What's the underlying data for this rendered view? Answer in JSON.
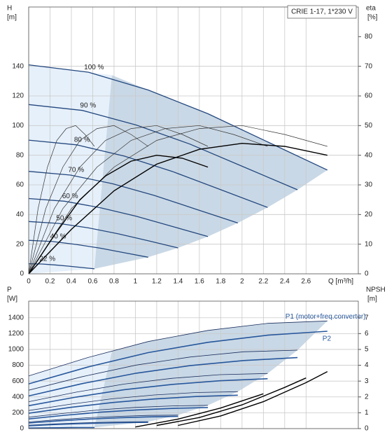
{
  "chart_data": [
    {
      "type": "line",
      "title": "CRIE 1-17, 1*230 V",
      "x_label": "Q [m³/h]",
      "y_label": "H",
      "y_unit": "[m]",
      "y2_label": "eta",
      "y2_unit": "[%]",
      "xlim": [
        0,
        3.09
      ],
      "xticks": [
        0,
        0.2,
        0.4,
        0.6,
        0.8,
        1,
        1.2,
        1.4,
        1.6,
        1.8,
        2,
        2.2,
        2.4,
        2.6
      ],
      "ylim": [
        0,
        180
      ],
      "yticks": [
        0,
        20,
        40,
        60,
        80,
        100,
        120,
        140
      ],
      "y2lim": [
        0,
        90
      ],
      "y2ticks": [
        0,
        10,
        20,
        30,
        40,
        50,
        60,
        70,
        80
      ],
      "grid": true,
      "areas": [
        {
          "color": "#e6f0fa",
          "x": [
            0,
            0,
            0.56,
            0.78,
            0.62
          ],
          "values": [
            0,
            141,
            136,
            134,
            3.4
          ]
        },
        {
          "color": "#c9d8e6",
          "x": [
            0.78,
            1.12,
            1.68,
            2.24,
            2.8,
            2.52,
            2.24,
            1.96,
            1.68,
            1.4,
            1.12,
            0.616
          ],
          "values": [
            134,
            124,
            108,
            89,
            70,
            56.7,
            44.8,
            34.3,
            25.2,
            17.5,
            11.2,
            3.4
          ]
        }
      ],
      "series": [
        {
          "name": "100 %",
          "color": "#24487f",
          "x": [
            0,
            0.56,
            1.12,
            1.68,
            2.24,
            2.8
          ],
          "values": [
            141,
            136,
            124,
            108,
            89,
            70
          ]
        },
        {
          "name": "90 %",
          "color": "#24487f",
          "x": [
            0,
            0.504,
            1.008,
            1.512,
            2.016,
            2.52
          ],
          "values": [
            114.2,
            110.2,
            100.4,
            87.5,
            72.1,
            56.7
          ]
        },
        {
          "name": "80 %",
          "color": "#24487f",
          "x": [
            0,
            0.448,
            0.896,
            1.344,
            1.792,
            2.24
          ],
          "values": [
            90.2,
            87,
            79.4,
            69.1,
            57,
            44.8
          ]
        },
        {
          "name": "70 %",
          "color": "#24487f",
          "x": [
            0,
            0.392,
            0.784,
            1.176,
            1.568,
            1.96
          ],
          "values": [
            69.1,
            66.6,
            60.8,
            52.9,
            43.6,
            34.3
          ]
        },
        {
          "name": "60 %",
          "color": "#24487f",
          "x": [
            0,
            0.336,
            0.672,
            1.008,
            1.344,
            1.68
          ],
          "values": [
            50.8,
            49,
            44.6,
            38.9,
            32,
            25.2
          ]
        },
        {
          "name": "50 %",
          "color": "#24487f",
          "x": [
            0,
            0.28,
            0.56,
            0.84,
            1.12,
            1.4
          ],
          "values": [
            35.3,
            34,
            31,
            27,
            22.3,
            17.5
          ]
        },
        {
          "name": "40 %",
          "color": "#24487f",
          "x": [
            0,
            0.224,
            0.448,
            0.672,
            0.896,
            1.12
          ],
          "values": [
            22.6,
            21.8,
            19.8,
            17.3,
            14.2,
            11.2
          ]
        },
        {
          "name": "22 %",
          "color": "#24487f",
          "x": [
            0,
            0.123,
            0.246,
            0.37,
            0.493,
            0.616
          ],
          "values": [
            6.8,
            6.6,
            6,
            5.2,
            4.3,
            3.4
          ]
        },
        {
          "axis": "y2",
          "color": "#333333",
          "x": [
            0,
            0.4,
            0.8,
            1.2,
            1.6,
            2,
            2.4,
            2.8
          ],
          "values": [
            0,
            22,
            36,
            45,
            49,
            50,
            47,
            43
          ]
        },
        {
          "axis": "y2",
          "color": "#333333",
          "x": [
            0,
            0.32,
            0.64,
            0.96,
            1.28,
            1.6,
            1.92,
            2.24
          ],
          "values": [
            0,
            22,
            36,
            45,
            49,
            50,
            47,
            43
          ]
        },
        {
          "axis": "y2",
          "color": "#333333",
          "x": [
            0,
            0.24,
            0.48,
            0.72,
            0.96,
            1.2,
            1.44,
            1.68
          ],
          "values": [
            0,
            22,
            36,
            45,
            49,
            50,
            47,
            43
          ]
        },
        {
          "axis": "y2",
          "color": "#333333",
          "x": [
            0,
            0.16,
            0.32,
            0.48,
            0.64,
            0.8,
            0.96,
            1.12
          ],
          "values": [
            0,
            22,
            36,
            45,
            49,
            50,
            47,
            43
          ]
        },
        {
          "axis": "y2",
          "color": "#333333",
          "x": [
            0,
            0.088,
            0.176,
            0.264,
            0.352,
            0.44,
            0.528,
            0.616
          ],
          "values": [
            0,
            22,
            36,
            45,
            49,
            50,
            47,
            43
          ]
        },
        {
          "axis": "y2",
          "color": "#000000",
          "x": [
            0,
            0.4,
            0.8,
            1.2,
            1.6,
            2,
            2.4,
            2.8
          ],
          "values": [
            0,
            15,
            28,
            37,
            42,
            44,
            43,
            40
          ]
        },
        {
          "axis": "y2",
          "color": "#000000",
          "x": [
            0,
            0.24,
            0.48,
            0.72,
            0.96,
            1.2,
            1.44,
            1.68
          ],
          "values": [
            0,
            13,
            25,
            33,
            38,
            40,
            39,
            36
          ]
        }
      ]
    },
    {
      "type": "line",
      "y_label": "P",
      "y_unit": "[W]",
      "y2_label": "NPSH",
      "y2_unit": "[m]",
      "xlim": [
        0,
        3.09
      ],
      "xticks": [
        0,
        0.2,
        0.4,
        0.6,
        0.8,
        1,
        1.2,
        1.4,
        1.6,
        1.8,
        2,
        2.2,
        2.4,
        2.6
      ],
      "ylim": [
        0,
        1610
      ],
      "yticks": [
        0,
        200,
        400,
        600,
        800,
        1000,
        1200,
        1400
      ],
      "y2lim": [
        0,
        8.05
      ],
      "y2ticks": [
        0,
        1,
        2,
        3,
        4,
        5,
        6,
        7
      ],
      "grid": true,
      "areas": [
        {
          "color": "#e6f0fa",
          "x": [
            0,
            0,
            0.56,
            0.78,
            0.62
          ],
          "values": [
            0,
            665,
            900,
            975,
            0
          ]
        },
        {
          "color": "#c9d8e6",
          "x": [
            0.78,
            1.12,
            1.68,
            2.24,
            2.8,
            2.52,
            2.24,
            1.96,
            1.68,
            1.4,
            1.12,
            0.616
          ],
          "values": [
            975,
            1100,
            1240,
            1330,
            1360,
            991,
            696,
            466,
            294,
            170,
            87,
            14
          ]
        }
      ],
      "series": [
        {
          "name": "P1 (motor+freq.converter)",
          "color": "#1b2f5e",
          "x": [
            0,
            0.56,
            1.12,
            1.68,
            2.24,
            2.8
          ],
          "values": [
            665,
            900,
            1100,
            1240,
            1330,
            1360
          ]
        },
        {
          "name": "P2",
          "color": "#27579c",
          "x": [
            0,
            0.56,
            1.12,
            1.68,
            2.24,
            2.8
          ],
          "values": [
            565,
            780,
            960,
            1090,
            1180,
            1230
          ]
        },
        {
          "color": "#1b2f5e",
          "x": [
            0,
            0.504,
            1.008,
            1.512,
            2.016,
            2.52
          ],
          "values": [
            485,
            656,
            802,
            904,
            970,
            991
          ]
        },
        {
          "color": "#27579c",
          "x": [
            0,
            0.504,
            1.008,
            1.512,
            2.016,
            2.52
          ],
          "values": [
            412,
            569,
            700,
            795,
            860,
            897
          ]
        },
        {
          "color": "#1b2f5e",
          "x": [
            0,
            0.448,
            0.896,
            1.344,
            1.792,
            2.24
          ],
          "values": [
            340,
            461,
            563,
            635,
            681,
            696
          ]
        },
        {
          "color": "#27579c",
          "x": [
            0,
            0.448,
            0.896,
            1.344,
            1.792,
            2.24
          ],
          "values": [
            289,
            399,
            492,
            558,
            604,
            630
          ]
        },
        {
          "color": "#1b2f5e",
          "x": [
            0,
            0.392,
            0.784,
            1.176,
            1.568,
            1.96
          ],
          "values": [
            228,
            309,
            377,
            425,
            456,
            466
          ]
        },
        {
          "color": "#27579c",
          "x": [
            0,
            0.392,
            0.784,
            1.176,
            1.568,
            1.96
          ],
          "values": [
            194,
            268,
            329,
            374,
            405,
            422
          ]
        },
        {
          "color": "#1b2f5e",
          "x": [
            0,
            0.336,
            0.672,
            1.008,
            1.344,
            1.68
          ],
          "values": [
            144,
            194,
            238,
            268,
            287,
            294
          ]
        },
        {
          "color": "#27579c",
          "x": [
            0,
            0.336,
            0.672,
            1.008,
            1.344,
            1.68
          ],
          "values": [
            122,
            168,
            207,
            235,
            255,
            266
          ]
        },
        {
          "color": "#1b2f5e",
          "x": [
            0,
            0.28,
            0.56,
            0.84,
            1.12,
            1.4
          ],
          "values": [
            83,
            113,
            138,
            155,
            166,
            170
          ]
        },
        {
          "color": "#27579c",
          "x": [
            0,
            0.28,
            0.56,
            0.84,
            1.12,
            1.4
          ],
          "values": [
            71,
            98,
            120,
            136,
            148,
            154
          ]
        },
        {
          "color": "#1b2f5e",
          "x": [
            0,
            0.224,
            0.448,
            0.672,
            0.896,
            1.12
          ],
          "values": [
            43,
            58,
            70,
            79,
            85,
            87
          ]
        },
        {
          "color": "#27579c",
          "x": [
            0,
            0.224,
            0.448,
            0.672,
            0.896,
            1.12
          ],
          "values": [
            36,
            50,
            61,
            70,
            76,
            79
          ]
        },
        {
          "color": "#1b2f5e",
          "x": [
            0,
            0.123,
            0.246,
            0.37,
            0.493,
            0.616
          ],
          "values": [
            7,
            10,
            12,
            13,
            14,
            14
          ]
        },
        {
          "color": "#27579c",
          "x": [
            0,
            0.123,
            0.246,
            0.37,
            0.493,
            0.616
          ],
          "values": [
            6,
            8,
            10,
            12,
            13,
            13
          ]
        },
        {
          "axis": "y2",
          "color": "#000000",
          "x": [
            1.4,
            1.8,
            2.2,
            2.6,
            2.8
          ],
          "values": [
            0.2,
            0.8,
            1.7,
            2.9,
            3.6
          ]
        },
        {
          "axis": "y2",
          "color": "#000000",
          "x": [
            1.2,
            1.6,
            2,
            2.4,
            2.6
          ],
          "values": [
            0.2,
            0.7,
            1.5,
            2.6,
            3.2
          ]
        },
        {
          "axis": "y2",
          "color": "#000000",
          "x": [
            1,
            1.4,
            1.8,
            2.2
          ],
          "values": [
            0.1,
            0.6,
            1.3,
            2.2
          ]
        }
      ]
    }
  ]
}
